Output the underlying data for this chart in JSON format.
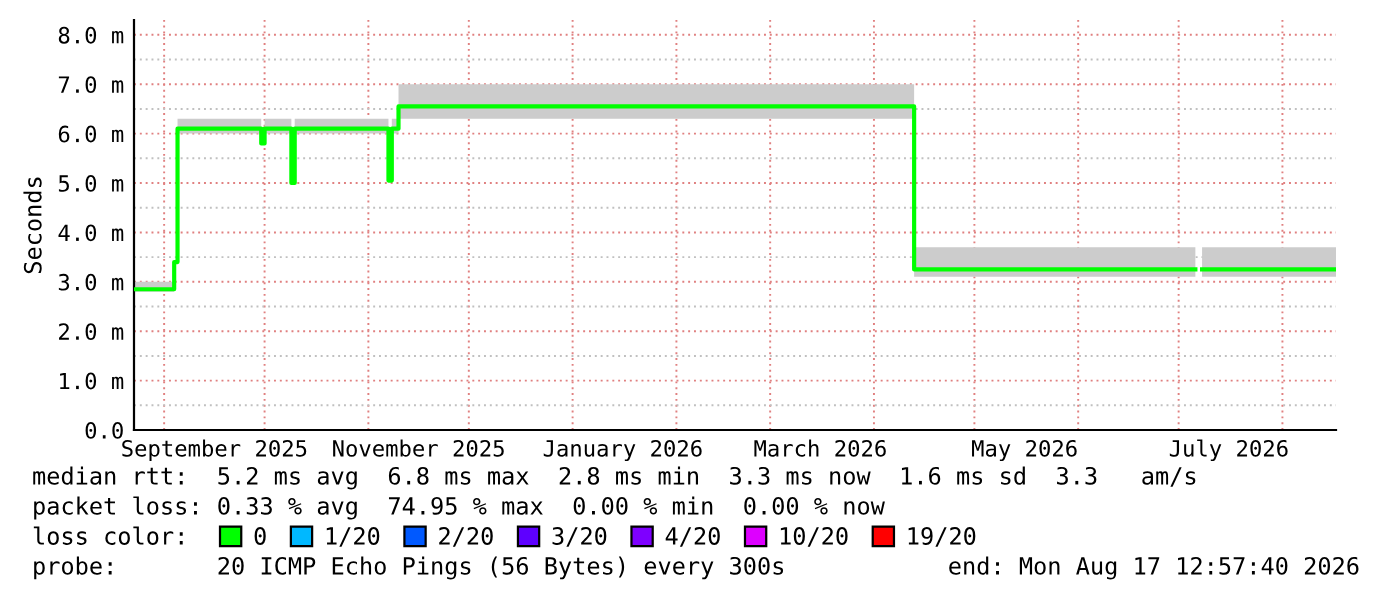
{
  "chart_data": {
    "type": "line",
    "ylabel": "Seconds",
    "xlim": [
      "2025-08-23",
      "2026-08-17"
    ],
    "xticks": [
      {
        "value": "2025-09-01",
        "label": null
      },
      {
        "value": "2025-09-16",
        "label": "September 2025"
      },
      {
        "value": "2025-10-01",
        "label": null
      },
      {
        "value": "2025-11-01",
        "label": null
      },
      {
        "value": "2025-11-16",
        "label": "November 2025"
      },
      {
        "value": "2025-12-01",
        "label": null
      },
      {
        "value": "2026-01-01",
        "label": null
      },
      {
        "value": "2026-01-16",
        "label": "January 2026"
      },
      {
        "value": "2026-02-01",
        "label": null
      },
      {
        "value": "2026-03-01",
        "label": null
      },
      {
        "value": "2026-03-16",
        "label": "March 2026"
      },
      {
        "value": "2026-04-01",
        "label": null
      },
      {
        "value": "2026-05-01",
        "label": null
      },
      {
        "value": "2026-05-16",
        "label": "May 2026"
      },
      {
        "value": "2026-06-01",
        "label": null
      },
      {
        "value": "2026-07-01",
        "label": null
      },
      {
        "value": "2026-07-16",
        "label": "July 2026"
      },
      {
        "value": "2026-08-01",
        "label": null
      }
    ],
    "ylim": [
      0,
      8.3
    ],
    "yticks": [
      {
        "value": 0,
        "label": "0.0"
      },
      {
        "value": 0.5,
        "label": null
      },
      {
        "value": 1,
        "label": "1.0 m"
      },
      {
        "value": 1.5,
        "label": null
      },
      {
        "value": 2,
        "label": "2.0 m"
      },
      {
        "value": 2.5,
        "label": null
      },
      {
        "value": 3,
        "label": "3.0 m"
      },
      {
        "value": 3.5,
        "label": null
      },
      {
        "value": 4,
        "label": "4.0 m"
      },
      {
        "value": 4.5,
        "label": null
      },
      {
        "value": 5,
        "label": "5.0 m"
      },
      {
        "value": 5.5,
        "label": null
      },
      {
        "value": 6,
        "label": "6.0 m"
      },
      {
        "value": 6.5,
        "label": null
      },
      {
        "value": 7,
        "label": "7.0 m"
      },
      {
        "value": 7.5,
        "label": null
      },
      {
        "value": 8,
        "label": "8.0 m"
      }
    ],
    "grid": true,
    "legend": "bottom",
    "legend_title": "loss color:",
    "series": [
      {
        "name": "0",
        "color": "#00ff00",
        "x": [
          "2025-08-23",
          "2025-09-04",
          "2025-09-04",
          "2025-09-05",
          "2025-09-05",
          "2025-09-30",
          "2025-09-30",
          "2025-10-01",
          "2025-10-01",
          "2025-10-09",
          "2025-10-09",
          "2025-10-10",
          "2025-10-10",
          "2025-11-07",
          "2025-11-07",
          "2025-11-08",
          "2025-11-08",
          "2025-11-10",
          "2025-11-10",
          "2026-04-13",
          "2026-04-13",
          "2026-07-06",
          "2026-07-07",
          "2026-07-08",
          "2026-08-17"
        ],
        "values": [
          2.85,
          2.85,
          3.4,
          3.4,
          6.1,
          6.1,
          5.8,
          5.8,
          6.1,
          6.1,
          5.0,
          5.0,
          6.1,
          6.1,
          5.05,
          5.05,
          6.1,
          6.1,
          6.55,
          6.55,
          3.25,
          3.25,
          null,
          3.25,
          3.25
        ],
        "lower": [
          2.8,
          2.8,
          3.4,
          3.4,
          6.0,
          6.0,
          5.8,
          5.8,
          6.0,
          6.0,
          5.0,
          5.0,
          6.0,
          6.0,
          5.05,
          5.05,
          6.0,
          6.0,
          6.3,
          6.3,
          3.1,
          3.1,
          null,
          3.1,
          3.1
        ],
        "upper": [
          3.0,
          3.0,
          3.4,
          3.4,
          6.3,
          6.3,
          5.8,
          5.8,
          6.3,
          6.3,
          5.0,
          5.0,
          6.3,
          6.3,
          5.05,
          5.05,
          6.3,
          6.3,
          7.0,
          7.0,
          3.7,
          3.7,
          null,
          3.7,
          3.7
        ]
      },
      {
        "name": "1/20",
        "color": "#00b8ff"
      },
      {
        "name": "2/20",
        "color": "#0059ff"
      },
      {
        "name": "3/20",
        "color": "#5e00ff"
      },
      {
        "name": "4/20",
        "color": "#7e00ff"
      },
      {
        "name": "10/20",
        "color": "#dd00ff"
      },
      {
        "name": "19/20",
        "color": "#ff0000"
      }
    ],
    "annotations": [
      "median rtt:  5.2 ms avg  6.8 ms max  2.8 ms min  3.3 ms now  1.6 ms sd  3.3   am/s",
      "packet loss: 0.33 % avg  74.95 % max  0.00 % min  0.00 % now",
      "probe:       20 ICMP Echo Pings (56 Bytes) every 300s",
      "end: Mon Aug 17 12:57:40 2026"
    ]
  }
}
